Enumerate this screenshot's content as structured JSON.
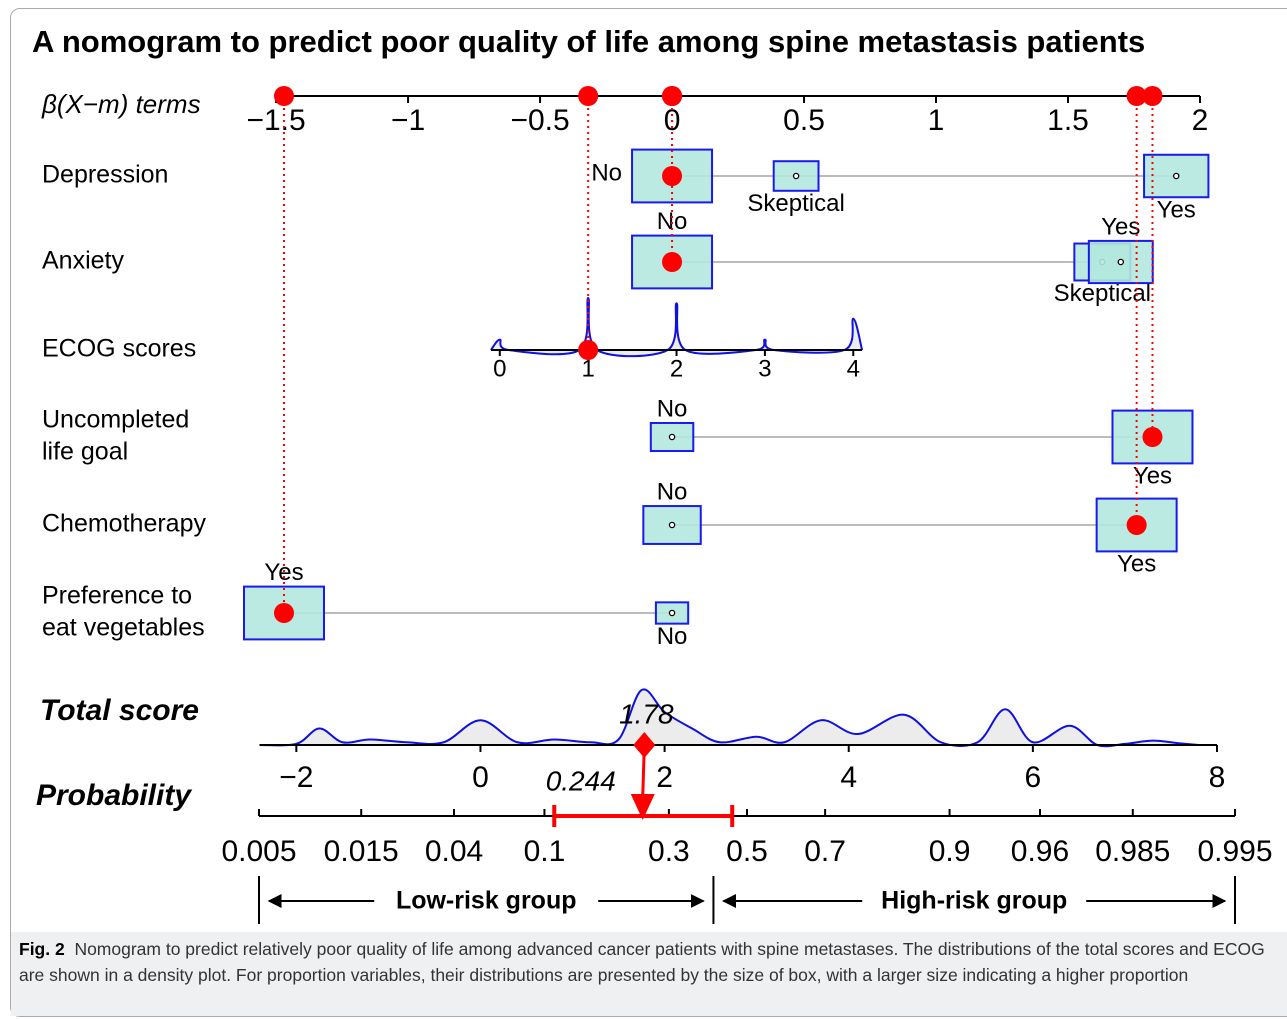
{
  "chart_data": {
    "type": "nomogram",
    "title": "A nomogram to predict poor quality of life among spine metastasis patients",
    "box_color": "#b3e8de",
    "box_edge": "#1a1aee",
    "point_color": "#ff0000",
    "beta_axis": {
      "label": "β(X−m) terms",
      "xlim": [
        -1.47,
        2
      ],
      "xticks": [
        {
          "value": -1.5,
          "label": "−1.5"
        },
        {
          "value": -1,
          "label": "−1"
        },
        {
          "value": -0.5,
          "label": "−0.5"
        },
        0,
        0.5,
        1,
        1.5,
        2
      ]
    },
    "variables": [
      {
        "name": [
          "Depression"
        ],
        "selected": 0,
        "levels": [
          {
            "label": "No",
            "beta": 0,
            "proportion": 0.51,
            "label_pos": "left"
          },
          {
            "label": "Skeptical",
            "beta": 0.47,
            "proportion": 0.16,
            "label_pos": "below"
          },
          {
            "label": "Yes",
            "beta": 1.91,
            "proportion": 0.33,
            "label_pos": "below"
          }
        ]
      },
      {
        "name": [
          "Anxiety"
        ],
        "selected": 0,
        "levels": [
          {
            "label": "No",
            "beta": 0,
            "proportion": 0.47,
            "label_pos": "above"
          },
          {
            "label": "Skeptical",
            "beta": 1.63,
            "proportion": 0.23,
            "label_pos": "below"
          },
          {
            "label": "Yes",
            "beta": 1.7,
            "proportion": 0.3,
            "label_pos": "above"
          }
        ]
      },
      {
        "name": [
          "ECOG scores"
        ],
        "xlim": [
          -0.1,
          4.1
        ],
        "beta_lim": [
          -0.686,
          0.72
        ],
        "xticks": [
          0,
          1,
          2,
          3,
          4
        ],
        "selected_value": 1,
        "density": {
          "x": [
            -0.1,
            0,
            0.1,
            0.9,
            1,
            1.1,
            1.9,
            2,
            2.1,
            2.9,
            3,
            3.1,
            3.9,
            4,
            4.1
          ],
          "y": [
            0,
            0.2,
            0,
            0,
            1,
            0,
            0,
            0.9,
            0,
            0,
            0.2,
            0,
            0,
            0.6,
            0
          ]
        }
      },
      {
        "name": [
          "Uncompleted",
          "life goal"
        ],
        "selected": 1,
        "levels": [
          {
            "label": "No",
            "beta": 0,
            "proportion": 0.22,
            "label_pos": "above"
          },
          {
            "label": "Yes",
            "beta": 1.82,
            "proportion": 0.78,
            "label_pos": "below"
          }
        ]
      },
      {
        "name": [
          "Chemotherapy"
        ],
        "selected": 1,
        "levels": [
          {
            "label": "No",
            "beta": 0,
            "proportion": 0.34,
            "label_pos": "above"
          },
          {
            "label": "Yes",
            "beta": 1.76,
            "proportion": 0.66,
            "label_pos": "below"
          }
        ]
      },
      {
        "name": [
          "Preference to",
          "eat vegetables"
        ],
        "selected": 0,
        "levels": [
          {
            "label": "Yes",
            "beta": -1.47,
            "proportion": 0.86,
            "label_pos": "above"
          },
          {
            "label": "No",
            "beta": 0,
            "proportion": 0.14,
            "label_pos": "below"
          }
        ]
      }
    ],
    "total_score": {
      "label": "Total score",
      "xlim": [
        -2.4,
        8
      ],
      "value": 1.78,
      "xticks": [
        {
          "value": -2,
          "label": "−2"
        },
        0,
        2,
        4,
        6,
        8
      ],
      "density": {
        "x": [
          -2.4,
          -2.0,
          -1.75,
          -1.5,
          -1.2,
          -0.8,
          -0.4,
          0,
          0.4,
          0.8,
          1.2,
          1.5,
          1.75,
          2.0,
          2.3,
          2.6,
          3.0,
          3.3,
          3.7,
          4.1,
          4.6,
          5.0,
          5.4,
          5.7,
          6.0,
          6.4,
          6.7,
          7.0,
          7.3,
          7.6,
          7.8
        ],
        "y": [
          0,
          0.02,
          0.3,
          0.05,
          0.1,
          0.05,
          0.05,
          0.45,
          0.05,
          0.1,
          0.05,
          0.1,
          1.0,
          0.6,
          0.3,
          0.05,
          0.15,
          0.05,
          0.45,
          0.2,
          0.55,
          0.05,
          0.05,
          0.65,
          0.05,
          0.35,
          0,
          0.02,
          0.08,
          0.03,
          0
        ]
      }
    },
    "probability": {
      "label": "Probability",
      "scale": "logit",
      "xlim": [
        0.005,
        0.995
      ],
      "value": 0.244,
      "ci": [
        0.11,
        0.46
      ],
      "xticks": [
        0.005,
        0.015,
        0.04,
        0.1,
        0.3,
        0.5,
        0.7,
        0.9,
        0.96,
        0.985,
        0.995
      ],
      "risk_cutoff": 0.41,
      "low_label": "Low-risk group",
      "low_color": "#4e7d2c",
      "high_label": "High-risk group",
      "high_color": "#ee1111"
    }
  },
  "caption": {
    "label": "Fig. 2",
    "text": "Nomogram to predict relatively poor quality of life among advanced cancer patients with spine metastases. The distributions of the total scores and ECOG are shown in a density plot. For proportion variables, their distributions are presented by the size of box, with a larger size indicating a higher proportion"
  }
}
